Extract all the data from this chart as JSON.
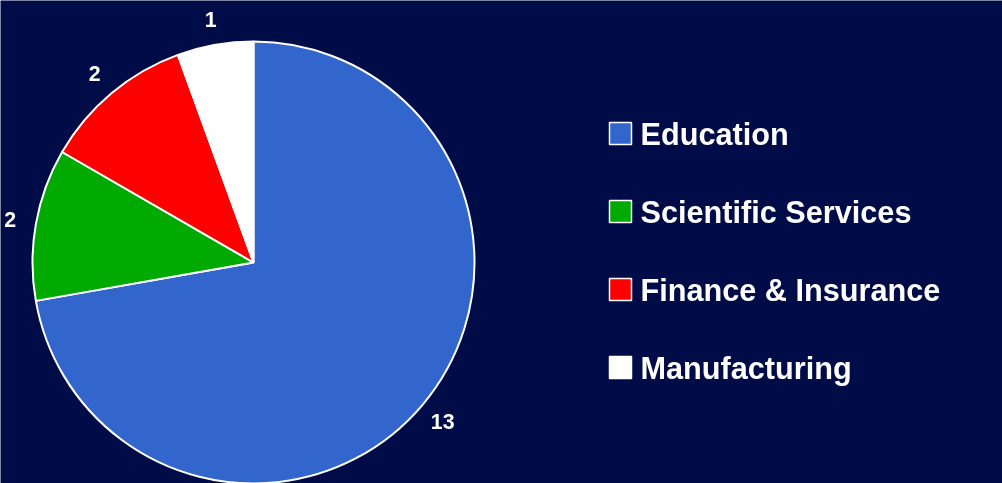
{
  "chart_data": {
    "type": "pie",
    "categories": [
      "Education",
      "Scientific Services",
      "Finance & Insurance",
      "Manufacturing"
    ],
    "values": [
      13,
      2,
      2,
      1
    ],
    "colors": [
      "#3366cc",
      "#00aa00",
      "#ff0000",
      "#ffffff"
    ],
    "data_labels": true,
    "legend": "right"
  }
}
